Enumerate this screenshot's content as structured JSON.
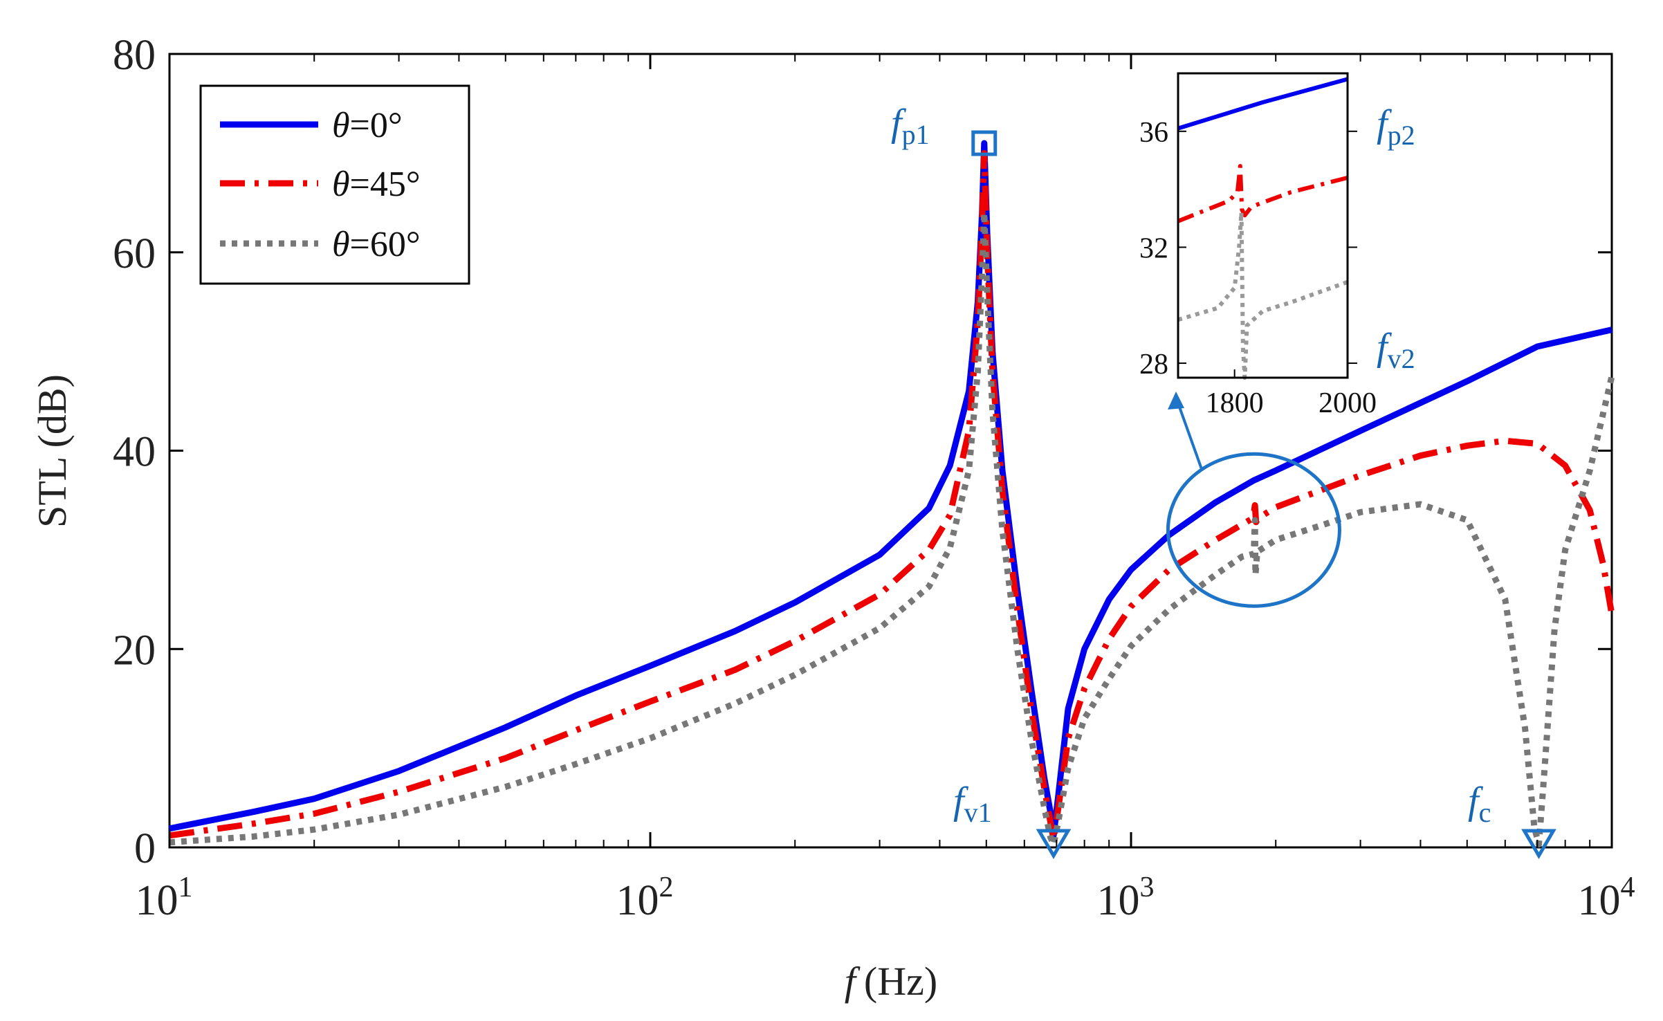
{
  "chart_data": {
    "type": "line",
    "x_scale": "log",
    "xlabel_var": "f",
    "xlabel_unit": "(Hz)",
    "ylabel": "STL (dB)",
    "xlim": [
      10,
      10000
    ],
    "ylim": [
      0,
      80
    ],
    "x_ticks": [
      {
        "value": 10,
        "base": "10",
        "exp": "1"
      },
      {
        "value": 100,
        "base": "10",
        "exp": "2"
      },
      {
        "value": 1000,
        "base": "10",
        "exp": "3"
      },
      {
        "value": 10000,
        "base": "10",
        "exp": "4"
      }
    ],
    "y_ticks": [
      "0",
      "20",
      "40",
      "60",
      "80"
    ],
    "series": [
      {
        "name": "θ=0°",
        "theta": "0°",
        "color": "#0000ee",
        "style": "solid",
        "points": [
          [
            10,
            1.9
          ],
          [
            15,
            3.6
          ],
          [
            20,
            4.9
          ],
          [
            30,
            7.7
          ],
          [
            50,
            12.1
          ],
          [
            70,
            15.3
          ],
          [
            100,
            18.3
          ],
          [
            150,
            21.8
          ],
          [
            200,
            24.7
          ],
          [
            300,
            29.5
          ],
          [
            380,
            34.2
          ],
          [
            420,
            38.5
          ],
          [
            460,
            46
          ],
          [
            480,
            55
          ],
          [
            490,
            64
          ],
          [
            495,
            71
          ],
          [
            502,
            62
          ],
          [
            515,
            50
          ],
          [
            540,
            38
          ],
          [
            580,
            26
          ],
          [
            620,
            16
          ],
          [
            660,
            7
          ],
          [
            680,
            3.5
          ],
          [
            690,
            1.2
          ],
          [
            705,
            5
          ],
          [
            740,
            14
          ],
          [
            800,
            20
          ],
          [
            900,
            25
          ],
          [
            1000,
            28
          ],
          [
            1200,
            31.5
          ],
          [
            1500,
            34.8
          ],
          [
            1800,
            37
          ],
          [
            2000,
            38
          ],
          [
            3000,
            42
          ],
          [
            5000,
            47
          ],
          [
            7000,
            50.5
          ],
          [
            10000,
            52.2
          ]
        ]
      },
      {
        "name": "θ=45°",
        "theta": "45°",
        "color": "#ee0000",
        "style": "dashdot",
        "points": [
          [
            10,
            1.2
          ],
          [
            15,
            2.4
          ],
          [
            20,
            3.4
          ],
          [
            30,
            5.6
          ],
          [
            50,
            9
          ],
          [
            70,
            11.8
          ],
          [
            100,
            14.7
          ],
          [
            150,
            17.9
          ],
          [
            200,
            20.8
          ],
          [
            300,
            25.5
          ],
          [
            380,
            30
          ],
          [
            420,
            33.5
          ],
          [
            460,
            42
          ],
          [
            480,
            53
          ],
          [
            490,
            63
          ],
          [
            495,
            70
          ],
          [
            502,
            60
          ],
          [
            515,
            48
          ],
          [
            540,
            36
          ],
          [
            580,
            24
          ],
          [
            620,
            14
          ],
          [
            660,
            6
          ],
          [
            680,
            2.5
          ],
          [
            690,
            0.8
          ],
          [
            705,
            3.8
          ],
          [
            740,
            11
          ],
          [
            800,
            16
          ],
          [
            900,
            21
          ],
          [
            1000,
            24.3
          ],
          [
            1200,
            28
          ],
          [
            1500,
            31
          ],
          [
            1780,
            33.1
          ],
          [
            1800,
            33.6
          ],
          [
            1810,
            34.5
          ],
          [
            1820,
            32.8
          ],
          [
            1840,
            33.2
          ],
          [
            2000,
            34.3
          ],
          [
            3000,
            37.5
          ],
          [
            4000,
            39.5
          ],
          [
            5000,
            40.5
          ],
          [
            6000,
            41
          ],
          [
            7000,
            40.7
          ],
          [
            8000,
            38.5
          ],
          [
            9000,
            34
          ],
          [
            9600,
            28.5
          ],
          [
            10000,
            23.5
          ]
        ]
      },
      {
        "name": "θ=60°",
        "theta": "60°",
        "color": "#777777",
        "style": "dotted",
        "points": [
          [
            10,
            0.5
          ],
          [
            15,
            1.1
          ],
          [
            20,
            1.8
          ],
          [
            30,
            3.3
          ],
          [
            50,
            6.1
          ],
          [
            70,
            8.4
          ],
          [
            100,
            11
          ],
          [
            150,
            14.5
          ],
          [
            200,
            17.4
          ],
          [
            300,
            22.1
          ],
          [
            380,
            26.3
          ],
          [
            420,
            30.2
          ],
          [
            460,
            38
          ],
          [
            480,
            48
          ],
          [
            490,
            58
          ],
          [
            495,
            64
          ],
          [
            502,
            56
          ],
          [
            515,
            44
          ],
          [
            540,
            32
          ],
          [
            580,
            20
          ],
          [
            620,
            11
          ],
          [
            660,
            4
          ],
          [
            680,
            1
          ],
          [
            690,
            0.3
          ],
          [
            705,
            2.5
          ],
          [
            740,
            8
          ],
          [
            800,
            13
          ],
          [
            900,
            17
          ],
          [
            1000,
            20.3
          ],
          [
            1200,
            24
          ],
          [
            1500,
            27.5
          ],
          [
            1700,
            29.3
          ],
          [
            1800,
            29.6
          ],
          [
            1810,
            33
          ],
          [
            1815,
            27.5
          ],
          [
            1830,
            29.8
          ],
          [
            2000,
            31
          ],
          [
            2500,
            32.5
          ],
          [
            3000,
            33.8
          ],
          [
            4000,
            34.6
          ],
          [
            5000,
            33
          ],
          [
            6000,
            25
          ],
          [
            6600,
            12
          ],
          [
            6900,
            2
          ],
          [
            7050,
            0.3
          ],
          [
            7200,
            6
          ],
          [
            7600,
            22
          ],
          [
            8000,
            30
          ],
          [
            9000,
            38
          ],
          [
            10000,
            47.5
          ]
        ]
      }
    ],
    "annotations": [
      {
        "name": "p1",
        "letter": "f",
        "sub": "p1",
        "x": 495,
        "y": 71,
        "marker": "square"
      },
      {
        "name": "v1",
        "letter": "f",
        "sub": "v1",
        "x": 690,
        "y": 0,
        "marker": "triangle-down"
      },
      {
        "name": "c",
        "letter": "f",
        "sub": "c",
        "x": 7050,
        "y": 0,
        "marker": "triangle-down"
      }
    ],
    "highlight": {
      "x": 1800,
      "y": 32,
      "shape": "ellipse"
    },
    "inset": {
      "xlim": [
        1700,
        2000
      ],
      "ylim": [
        27.5,
        38
      ],
      "x_ticks": [
        "1800",
        "2000"
      ],
      "x_tick_values": [
        1800,
        2000
      ],
      "y_ticks": [
        "28",
        "32",
        "36"
      ],
      "y_tick_values": [
        28,
        32,
        36
      ],
      "annotations": [
        {
          "name": "p2",
          "letter": "f",
          "sub": "p2"
        },
        {
          "name": "v2",
          "letter": "f",
          "sub": "v2"
        }
      ],
      "series": [
        {
          "name": "θ=0°",
          "color": "#0000ee",
          "style": "solid",
          "points": [
            [
              1700,
              36.1
            ],
            [
              1850,
              37
            ],
            [
              2000,
              37.8
            ]
          ]
        },
        {
          "name": "θ=45°",
          "color": "#ee0000",
          "style": "dashdot",
          "points": [
            [
              1700,
              32.9
            ],
            [
              1790,
              33.6
            ],
            [
              1805,
              33.9
            ],
            [
              1810,
              34.8
            ],
            [
              1813,
              33.3
            ],
            [
              1818,
              33.1
            ],
            [
              1830,
              33.4
            ],
            [
              1900,
              33.9
            ],
            [
              2000,
              34.4
            ]
          ]
        },
        {
          "name": "θ=60°",
          "color": "#999999",
          "style": "dotted",
          "points": [
            [
              1700,
              29.5
            ],
            [
              1770,
              29.9
            ],
            [
              1800,
              30.6
            ],
            [
              1808,
              32
            ],
            [
              1812,
              33.2
            ],
            [
              1815,
              28.5
            ],
            [
              1818,
              27.5
            ],
            [
              1822,
              29.3
            ],
            [
              1850,
              29.8
            ],
            [
              1900,
              30.1
            ],
            [
              2000,
              30.8
            ]
          ]
        }
      ]
    }
  }
}
